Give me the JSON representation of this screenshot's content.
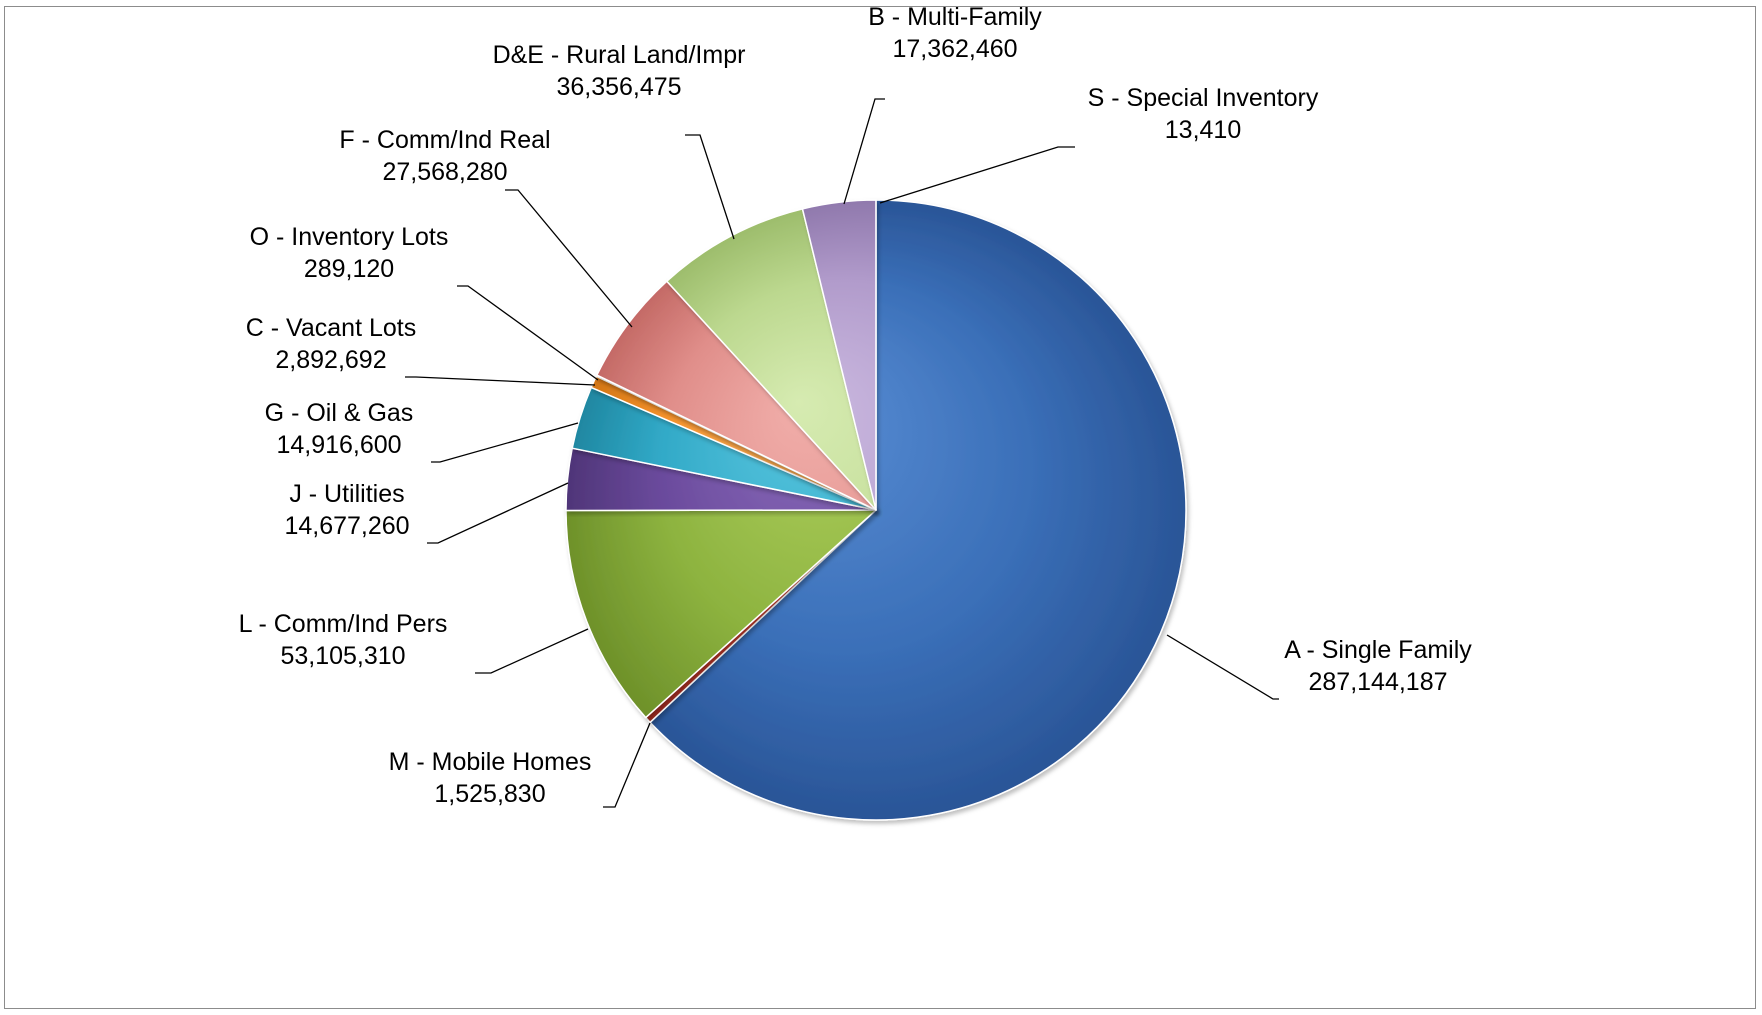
{
  "chart_data": {
    "type": "pie",
    "title": "",
    "legend": "none",
    "start_angle_deg": 0,
    "direction": "clockwise",
    "slices": [
      {
        "label": "A - Single Family",
        "value": 287144187,
        "value_text": "287,144,187",
        "color": "#3a6fb8",
        "dark": "#2a5597",
        "light": "#5b8fd6"
      },
      {
        "label": "M - Mobile Homes",
        "value": 1525830,
        "value_text": "1,525,830",
        "color": "#c0392b",
        "dark": "#9a2a1f",
        "light": "#e05a4a"
      },
      {
        "label": "L - Comm/Ind Pers",
        "value": 53105310,
        "value_text": "53,105,310",
        "color": "#8db33f",
        "dark": "#6e912a",
        "light": "#aecf5e"
      },
      {
        "label": "J - Utilities",
        "value": 14677260,
        "value_text": "14,677,260",
        "color": "#6a4a9c",
        "dark": "#4f3578",
        "light": "#8a6bbb"
      },
      {
        "label": "G - Oil & Gas",
        "value": 14916600,
        "value_text": "14,916,600",
        "color": "#31a9c7",
        "dark": "#1f87a1",
        "light": "#59c6df"
      },
      {
        "label": "C - Vacant Lots",
        "value": 2892692,
        "value_text": "2,892,692",
        "color": "#f5922b",
        "dark": "#d27515",
        "light": "#ffb35f"
      },
      {
        "label": "O - Inventory Lots",
        "value": 289120,
        "value_text": "289,120",
        "color": "#3a6fb8",
        "dark": "#2a5597",
        "light": "#5b8fd6"
      },
      {
        "label": "F - Comm/Ind Real",
        "value": 27568280,
        "value_text": "27,568,280",
        "color": "#e08e8a",
        "dark": "#c46a66",
        "light": "#f1aeaa"
      },
      {
        "label": "D&E - Rural Land/Impr",
        "value": 36356475,
        "value_text": "36,356,475",
        "color": "#bcd88f",
        "dark": "#9dbd6c",
        "light": "#d6ebb1"
      },
      {
        "label": "B - Multi-Family",
        "value": 17362460,
        "value_text": "17,362,460",
        "color": "#b19bcb",
        "dark": "#9079ad",
        "light": "#cbb9e0"
      },
      {
        "label": "S - Special Inventory",
        "value": 13410,
        "value_text": "13,410",
        "color": "#3a6fb8",
        "dark": "#2a5597",
        "light": "#5b8fd6"
      }
    ]
  }
}
